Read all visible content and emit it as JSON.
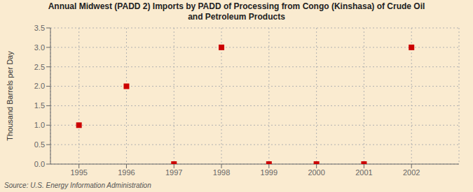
{
  "chart_data": {
    "type": "scatter",
    "title": "Annual Midwest (PADD 2) Imports by PADD of Processing from Congo (Kinshasa) of Crude Oil\nand Petroleum Products",
    "ylabel": "Thousand Barrels per Day",
    "annotations": [
      "Source: U.S. Energy Information Administration"
    ],
    "x": [
      1995,
      1996,
      1997,
      1998,
      1999,
      2000,
      2001,
      2002
    ],
    "values": [
      1.0,
      2.0,
      0.0,
      3.0,
      0.0,
      0.0,
      0.0,
      3.0
    ],
    "color": "#cc0000",
    "marker": "square",
    "xlim": [
      1994.4,
      2003.0
    ],
    "ylim": [
      0.0,
      3.5
    ],
    "xticks": [
      1995,
      1996,
      1997,
      1998,
      1999,
      2000,
      2001,
      2002
    ],
    "yticks": [
      {
        "value": 0.0,
        "label": "0.0"
      },
      0.5,
      {
        "value": 1.0,
        "label": "1.0"
      },
      1.5,
      {
        "value": 2.0,
        "label": "2.0"
      },
      2.5,
      {
        "value": 3.0,
        "label": "3.0"
      },
      3.5
    ],
    "grid": true
  }
}
